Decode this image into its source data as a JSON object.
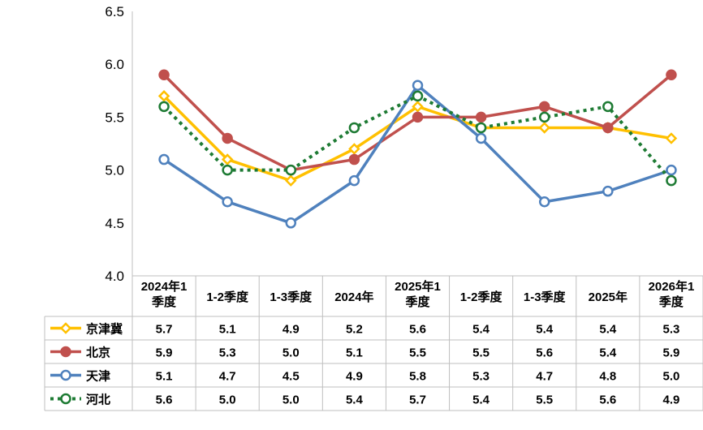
{
  "chart_data": {
    "type": "line",
    "title": "",
    "xlabel": "",
    "ylabel": "",
    "ylim": [
      4.0,
      6.5
    ],
    "yticks": [
      "4.0",
      "4.5",
      "5.0",
      "5.5",
      "6.0",
      "6.5"
    ],
    "grid": false,
    "legend": "table-left",
    "categories": [
      [
        "2024年1",
        "季度"
      ],
      [
        "1-2季度"
      ],
      [
        "1-3季度"
      ],
      [
        "2024年"
      ],
      [
        "2025年1",
        "季度"
      ],
      [
        "1-2季度"
      ],
      [
        "1-3季度"
      ],
      [
        "2025年"
      ],
      [
        "2026年1",
        "季度"
      ]
    ],
    "series": [
      {
        "name": "京津冀",
        "color": "#ffc000",
        "marker": "diamond",
        "dash": "solid",
        "values": [
          5.7,
          5.1,
          4.9,
          5.2,
          5.6,
          5.4,
          5.4,
          5.4,
          5.3
        ],
        "labels": [
          "5.7",
          "5.1",
          "4.9",
          "5.2",
          "5.6",
          "5.4",
          "5.4",
          "5.4",
          "5.3"
        ]
      },
      {
        "name": "北京",
        "color": "#c0504d",
        "marker": "filled-circle",
        "dash": "solid",
        "values": [
          5.9,
          5.3,
          5.0,
          5.1,
          5.5,
          5.5,
          5.6,
          5.4,
          5.9
        ],
        "labels": [
          "5.9",
          "5.3",
          "5.0",
          "5.1",
          "5.5",
          "5.5",
          "5.6",
          "5.4",
          "5.9"
        ]
      },
      {
        "name": "天津",
        "color": "#4f81bd",
        "marker": "open-circle",
        "dash": "solid",
        "values": [
          5.1,
          4.7,
          4.5,
          4.9,
          5.8,
          5.3,
          4.7,
          4.8,
          5.0
        ],
        "labels": [
          "5.1",
          "4.7",
          "4.5",
          "4.9",
          "5.8",
          "5.3",
          "4.7",
          "4.8",
          "5.0"
        ]
      },
      {
        "name": "河北",
        "color": "#1e7b34",
        "marker": "open-circle",
        "dash": "dotted",
        "values": [
          5.6,
          5.0,
          5.0,
          5.4,
          5.7,
          5.4,
          5.5,
          5.6,
          4.9
        ],
        "labels": [
          "5.6",
          "5.0",
          "5.0",
          "5.4",
          "5.7",
          "5.4",
          "5.5",
          "5.6",
          "4.9"
        ]
      }
    ]
  }
}
